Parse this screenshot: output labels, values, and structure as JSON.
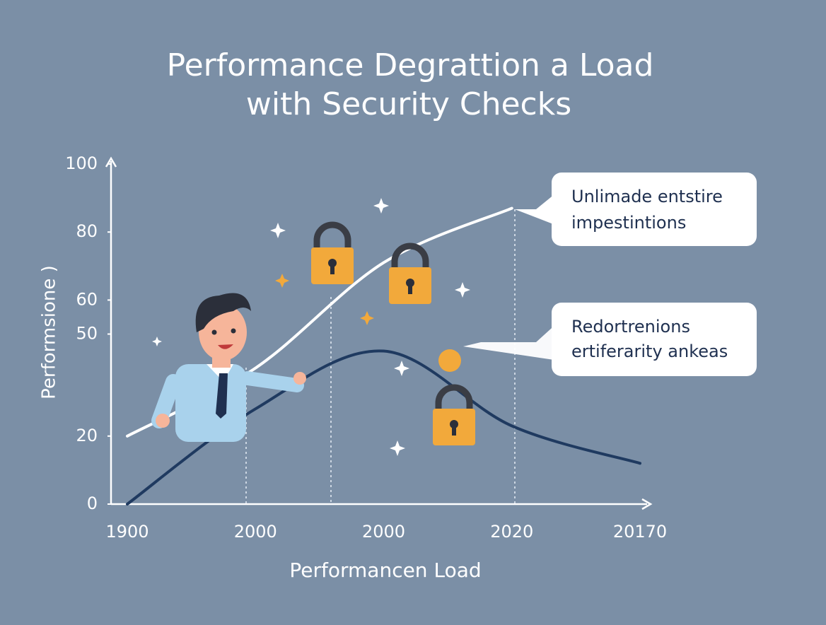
{
  "chart_data": {
    "type": "line",
    "title": [
      "Performance Degrattion a Load",
      "with Security Checks"
    ],
    "x_label": "Performancen Load",
    "y_label": "Performsione )",
    "categories": [
      "1900",
      "2000",
      "2000",
      "2020",
      "20170"
    ],
    "ylim": [
      0,
      100
    ],
    "yticks": [
      0,
      20,
      50,
      60,
      80,
      100
    ],
    "series": [
      {
        "color": "#ffffff",
        "values": [
          20,
          40,
          71,
          87,
          null
        ]
      },
      {
        "color": "#1f3a60",
        "values": [
          0,
          28,
          45,
          23,
          12
        ]
      }
    ],
    "annotations": [
      [
        "Unlimade entstire",
        "impestintions"
      ],
      [
        "Redortrenions",
        "ertiferarity ankeas"
      ]
    ]
  }
}
